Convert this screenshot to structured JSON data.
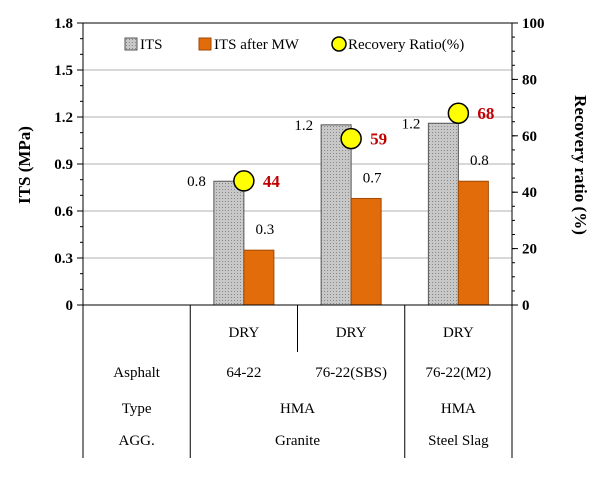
{
  "chart_data": {
    "type": "bar",
    "y_left": {
      "label": "ITS (MPa)",
      "ylim": [
        0,
        1.8
      ],
      "ticks": [
        "0",
        "0.3",
        "0.6",
        "0.9",
        "1.2",
        "1.5",
        "1.8"
      ]
    },
    "y_right": {
      "label": "Recovery ratio (%)",
      "ylim": [
        0,
        100
      ],
      "ticks": [
        "0",
        "20",
        "40",
        "60",
        "80",
        "100"
      ]
    },
    "legend": [
      "ITS",
      "ITS after MW",
      "Recovery Ratio(%)"
    ],
    "groups": [
      {
        "condition": "",
        "asphalt": "",
        "its": null,
        "its_mw": null,
        "its_label": "",
        "its_mw_label": "",
        "ratio": null,
        "ratio_label": ""
      },
      {
        "condition": "DRY",
        "asphalt": "64-22",
        "its": 0.79,
        "its_mw": 0.35,
        "its_label": "0.8",
        "its_mw_label": "0.3",
        "ratio": 44,
        "ratio_label": "44"
      },
      {
        "condition": "DRY",
        "asphalt": "76-22(SBS)",
        "its": 1.15,
        "its_mw": 0.68,
        "its_label": "1.2",
        "its_mw_label": "0.7",
        "ratio": 59,
        "ratio_label": "59"
      },
      {
        "condition": "DRY",
        "asphalt": "76-22(M2)",
        "its": 1.16,
        "its_mw": 0.79,
        "its_label": "1.2",
        "its_mw_label": "0.8",
        "ratio": 68,
        "ratio_label": "68"
      }
    ],
    "table": {
      "row_labels": [
        "Asphalt",
        "Type",
        "AGG."
      ],
      "type_row": [
        {
          "text": "HMA",
          "from": 1,
          "to": 2
        },
        {
          "text": "HMA",
          "from": 3,
          "to": 3
        }
      ],
      "agg_row": [
        {
          "text": "Granite",
          "from": 1,
          "to": 2
        },
        {
          "text": "Steel Slag",
          "from": 3,
          "to": 3
        }
      ]
    },
    "colors": {
      "its": "#c0c0c0",
      "its_mw": "#e36c0a",
      "marker": "#ffff00",
      "ratio_text": "#c00000"
    }
  }
}
